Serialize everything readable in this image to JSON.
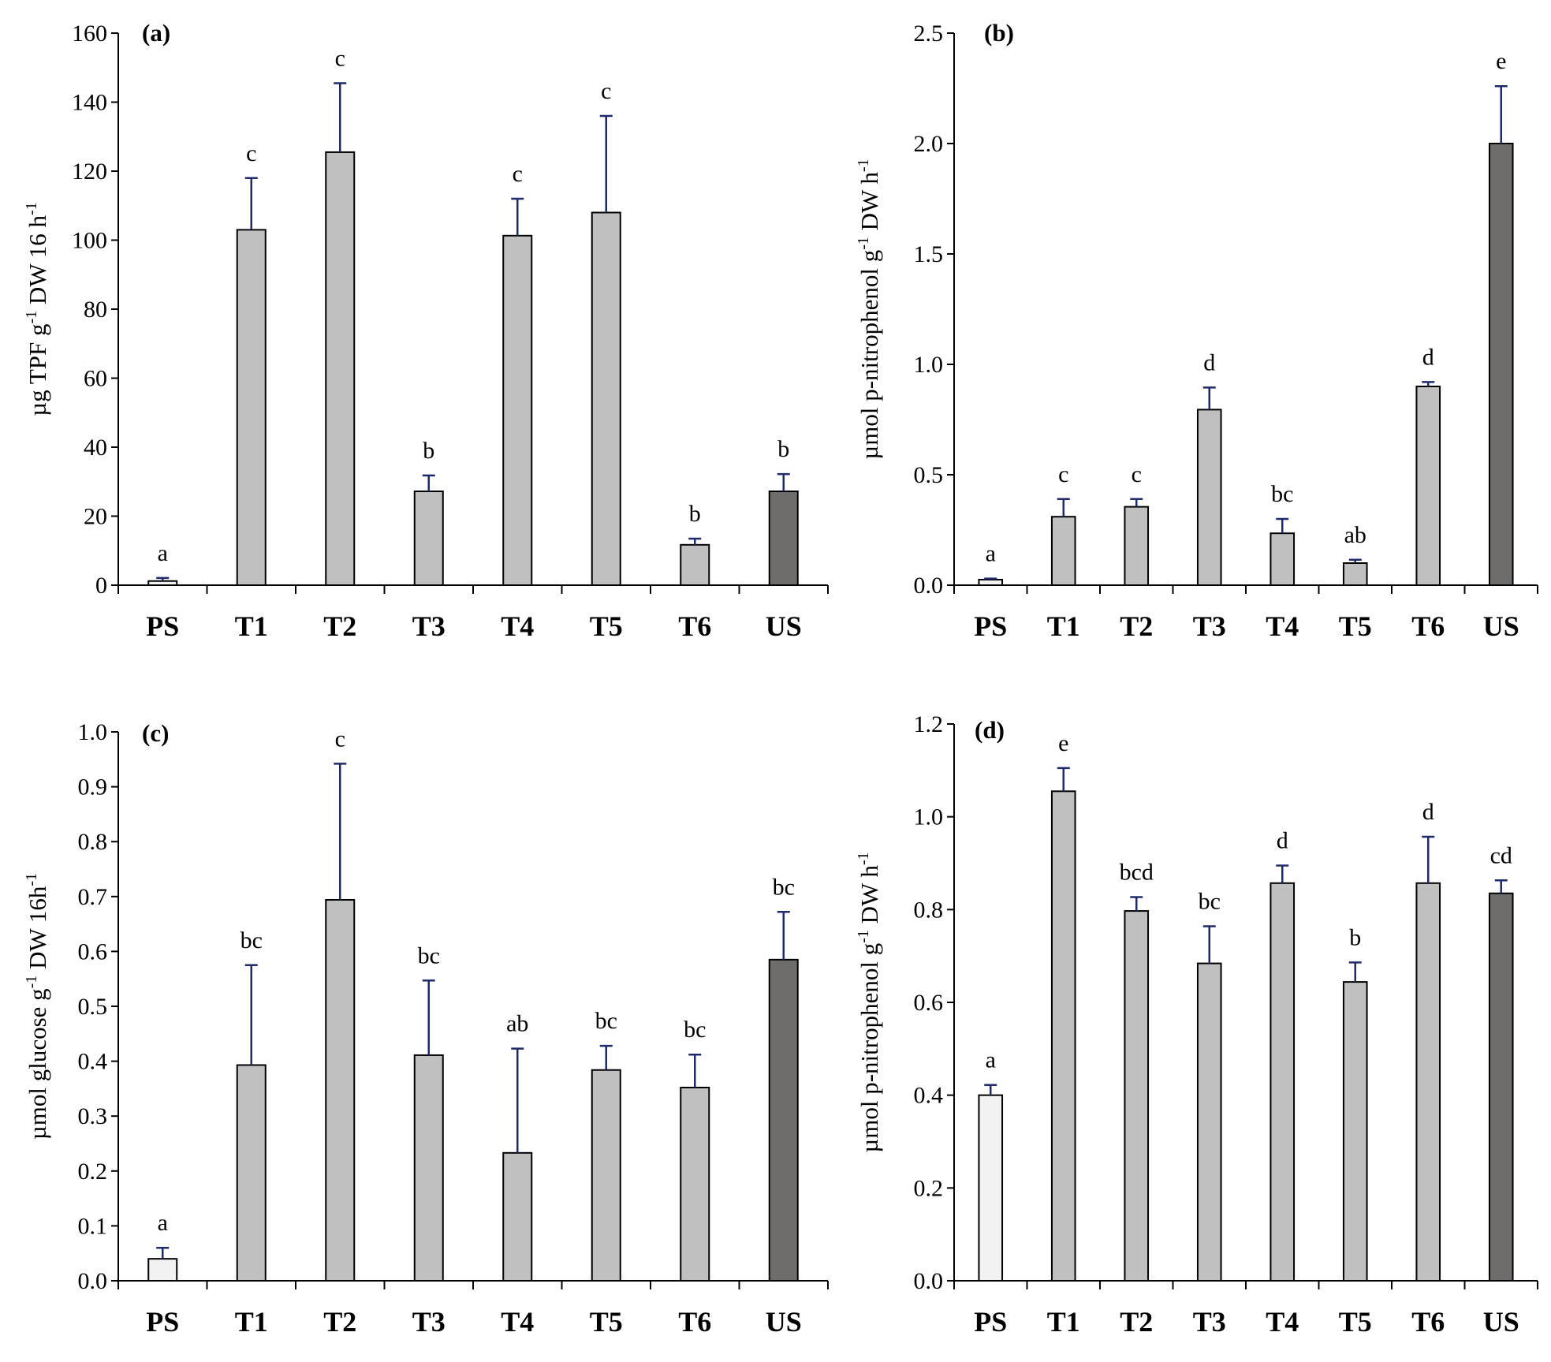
{
  "colors": {
    "ps": "#f2f2f2",
    "treatment": "#c0c0c0",
    "us": "#6f6c6c",
    "error": "#1f2a6b",
    "axis": "#000000"
  },
  "chart_data": [
    {
      "type": "bar",
      "panel": "(a)",
      "ylabel": {
        "main": "µg TPF g",
        "sup": "-1",
        "rest": " DW 16 h",
        "sup2": "-1"
      },
      "categories": [
        "PS",
        "T1",
        "T2",
        "T3",
        "T4",
        "T5",
        "T6",
        "US"
      ],
      "values": [
        1.2,
        103,
        125.5,
        27.2,
        101.3,
        108,
        11.7,
        27.2
      ],
      "errors": [
        0.9,
        15,
        20,
        4.6,
        10.7,
        28,
        1.8,
        5
      ],
      "letters": [
        "a",
        "c",
        "c",
        "b",
        "c",
        "c",
        "b",
        "b"
      ],
      "ylim": [
        0,
        160
      ],
      "yticks": [
        "0",
        "20",
        "40",
        "60",
        "80",
        "100",
        "120",
        "140",
        "160"
      ]
    },
    {
      "type": "bar",
      "panel": "(b)",
      "ylabel": {
        "main": "µmol p-nitrophenol g",
        "sup": "-1",
        "rest": " DW h",
        "sup2": "-1"
      },
      "categories": [
        "PS",
        "T1",
        "T2",
        "T3",
        "T4",
        "T5",
        "T6",
        "US"
      ],
      "values": [
        0.025,
        0.31,
        0.355,
        0.795,
        0.235,
        0.1,
        0.9,
        2.0
      ],
      "errors": [
        0.005,
        0.08,
        0.035,
        0.1,
        0.065,
        0.015,
        0.02,
        0.26
      ],
      "letters": [
        "a",
        "c",
        "c",
        "d",
        "bc",
        "ab",
        "d",
        "e"
      ],
      "ylim": [
        0,
        2.5
      ],
      "yticks": [
        "0.0",
        "0.5",
        "1.0",
        "1.5",
        "2.0",
        "2.5"
      ]
    },
    {
      "type": "bar",
      "panel": "(c)",
      "ylabel": {
        "main": "µmol glucose g",
        "sup": "-1",
        "rest": " DW 16h",
        "sup2": "-1"
      },
      "categories": [
        "PS",
        "T1",
        "T2",
        "T3",
        "T4",
        "T5",
        "T6",
        "US"
      ],
      "values": [
        0.04,
        0.393,
        0.694,
        0.411,
        0.233,
        0.384,
        0.352,
        0.585
      ],
      "errors": [
        0.02,
        0.182,
        0.248,
        0.136,
        0.19,
        0.044,
        0.06,
        0.087
      ],
      "letters": [
        "a",
        "bc",
        "c",
        "bc",
        "ab",
        "bc",
        "bc",
        "bc"
      ],
      "ylim": [
        0,
        1.0
      ],
      "yticks": [
        "0.0",
        "0.1",
        "0.2",
        "0.3",
        "0.4",
        "0.5",
        "0.6",
        "0.7",
        "0.8",
        "0.9",
        "1.0"
      ]
    },
    {
      "type": "bar",
      "panel": "(d)",
      "ylabel": {
        "main": "µmol p-nitrophenol g",
        "sup": "-1",
        "rest": " DW h",
        "sup2": "-1"
      },
      "categories": [
        "PS",
        "T1",
        "T2",
        "T3",
        "T4",
        "T5",
        "T6",
        "US"
      ],
      "values": [
        0.4,
        1.055,
        0.797,
        0.684,
        0.857,
        0.644,
        0.857,
        0.835
      ],
      "errors": [
        0.022,
        0.05,
        0.03,
        0.08,
        0.038,
        0.042,
        0.1,
        0.028
      ],
      "letters": [
        "a",
        "e",
        "bcd",
        "bc",
        "d",
        "b",
        "d",
        "cd"
      ],
      "ylim": [
        0,
        1.2
      ],
      "yticks": [
        "0.0",
        "0.2",
        "0.4",
        "0.6",
        "0.8",
        "1.0",
        "1.2"
      ]
    }
  ]
}
